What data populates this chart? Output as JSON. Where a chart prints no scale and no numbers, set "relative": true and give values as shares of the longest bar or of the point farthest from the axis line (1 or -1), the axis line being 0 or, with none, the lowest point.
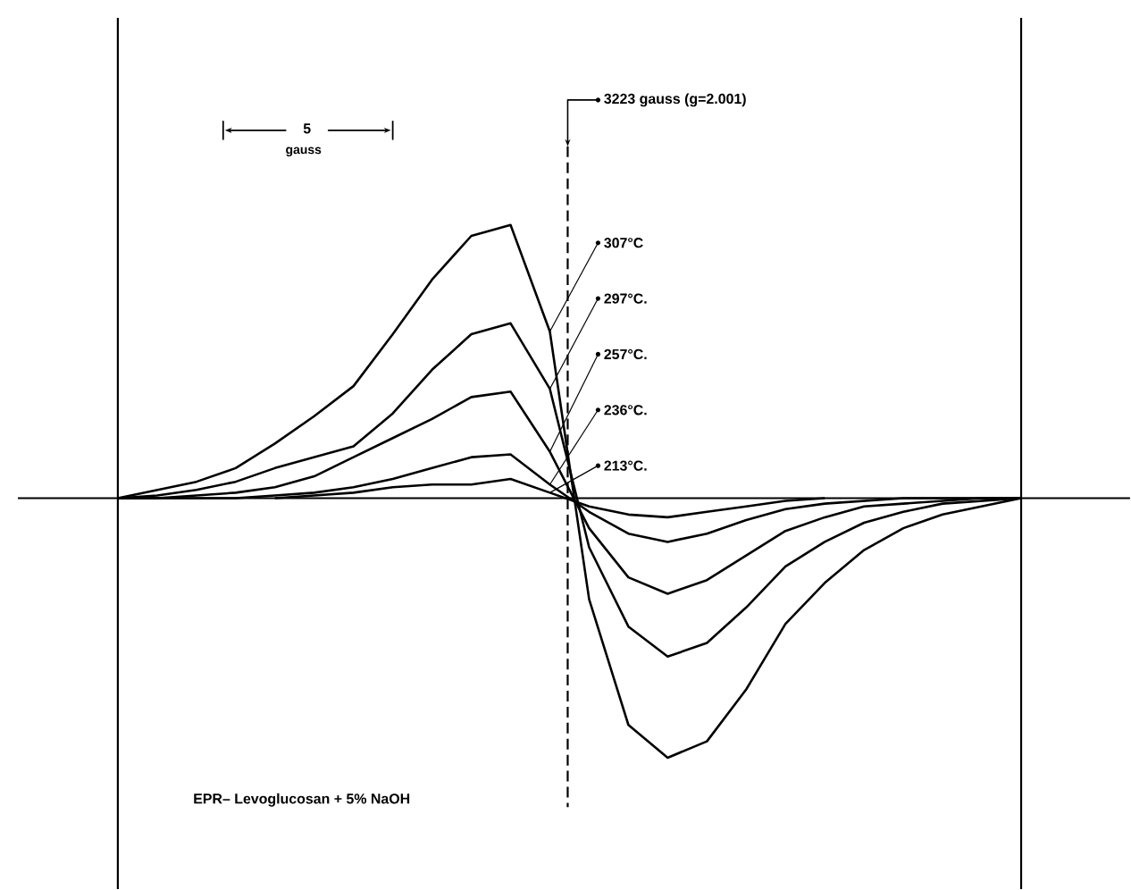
{
  "chart_data": {
    "type": "line",
    "relative": true,
    "legend": "top",
    "line_style": "solid",
    "categories": [
      null,
      null,
      null,
      null,
      null,
      null,
      null,
      null,
      null,
      null,
      null,
      null,
      null,
      null,
      null,
      null,
      null,
      null,
      null,
      null,
      null,
      null,
      null,
      null
    ],
    "series": [
      {
        "name": "307°C",
        "color": "#000000",
        "values": [
          0,
          0.03,
          0.06,
          0.11,
          0.2,
          0.3,
          0.41,
          0.6,
          0.8,
          0.96,
          1.0,
          0.61,
          -0.37,
          -0.83,
          -0.95,
          -0.89,
          -0.7,
          -0.46,
          -0.31,
          -0.19,
          -0.11,
          -0.06,
          -0.03,
          0
        ]
      },
      {
        "name": "297°C.",
        "color": "#000000",
        "values": [
          0,
          0.01,
          0.03,
          0.06,
          0.11,
          0.15,
          0.19,
          0.31,
          0.47,
          0.6,
          0.64,
          0.4,
          -0.18,
          -0.47,
          -0.58,
          -0.53,
          -0.4,
          -0.25,
          -0.16,
          -0.09,
          -0.05,
          -0.02,
          -0.01,
          0
        ]
      },
      {
        "name": "257°C.",
        "color": "#000000",
        "values": [
          0,
          0,
          0.01,
          0.02,
          0.04,
          0.08,
          0.15,
          0.22,
          0.29,
          0.37,
          0.39,
          0.17,
          -0.11,
          -0.29,
          -0.35,
          -0.3,
          -0.21,
          -0.12,
          -0.07,
          -0.03,
          -0.02,
          -0.01,
          0,
          0
        ]
      },
      {
        "name": "236°C.",
        "color": "#000000",
        "values": [
          0,
          0,
          0,
          0,
          0.01,
          0.02,
          0.04,
          0.07,
          0.11,
          0.15,
          0.16,
          0.05,
          -0.05,
          -0.13,
          -0.16,
          -0.13,
          -0.08,
          -0.04,
          -0.02,
          -0.01,
          0,
          0,
          0,
          0
        ]
      },
      {
        "name": "213°C.",
        "color": "#000000",
        "values": [
          null,
          null,
          null,
          null,
          0,
          0.01,
          0.02,
          0.04,
          0.05,
          0.05,
          0.07,
          0.02,
          -0.03,
          -0.06,
          -0.07,
          -0.05,
          -0.03,
          -0.01,
          0,
          null,
          null,
          null,
          null,
          null
        ]
      }
    ],
    "annotations": [
      "EPR– Levoglucosan + 5% NaOH",
      "3223 gauss (g=2.001)",
      "5",
      "gauss"
    ]
  }
}
